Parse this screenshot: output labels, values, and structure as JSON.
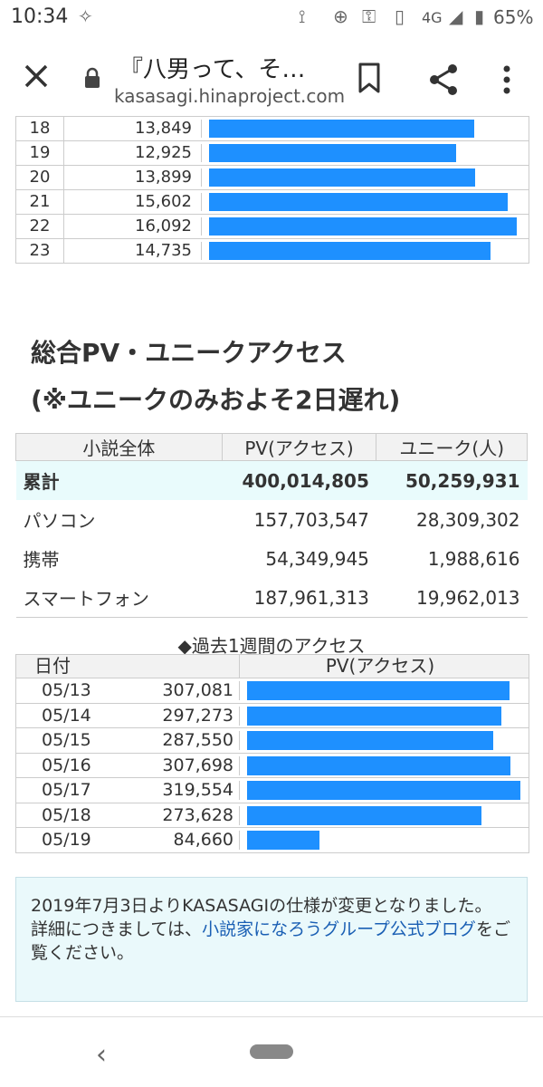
{
  "status": {
    "time": "10:34",
    "network": "4G",
    "battery": "65%"
  },
  "toolbar": {
    "title": "『八男って、そ…",
    "url": "kasasagi.hinaproject.com"
  },
  "hourly": [
    {
      "hour": "18",
      "pv": "13,849",
      "value": 13849
    },
    {
      "hour": "19",
      "pv": "12,925",
      "value": 12925
    },
    {
      "hour": "20",
      "pv": "13,899",
      "value": 13899
    },
    {
      "hour": "21",
      "pv": "15,602",
      "value": 15602
    },
    {
      "hour": "22",
      "pv": "16,092",
      "value": 16092
    },
    {
      "hour": "23",
      "pv": "14,735",
      "value": 14735
    }
  ],
  "section": {
    "heading1": "総合PV・ユニークアクセス",
    "heading2": "(※ユニークのみおよそ2日遅れ)"
  },
  "totals": {
    "headers": [
      "小説全体",
      "PV(アクセス)",
      "ユニーク(人)"
    ],
    "rows": [
      {
        "label": "累計",
        "pv": "400,014,805",
        "unique": "50,259,931"
      },
      {
        "label": "パソコン",
        "pv": "157,703,547",
        "unique": "28,309,302"
      },
      {
        "label": "携帯",
        "pv": "54,349,945",
        "unique": "1,988,616"
      },
      {
        "label": "スマートフォン",
        "pv": "187,961,313",
        "unique": "19,962,013"
      }
    ]
  },
  "weekly": {
    "caption": "◆過去1週間のアクセス",
    "headers": [
      "日付",
      "PV(アクセス)"
    ],
    "rows": [
      {
        "date": "05/13",
        "pv": "307,081",
        "value": 307081
      },
      {
        "date": "05/14",
        "pv": "297,273",
        "value": 297273
      },
      {
        "date": "05/15",
        "pv": "287,550",
        "value": 287550
      },
      {
        "date": "05/16",
        "pv": "307,698",
        "value": 307698
      },
      {
        "date": "05/17",
        "pv": "319,554",
        "value": 319554
      },
      {
        "date": "05/18",
        "pv": "273,628",
        "value": 273628
      },
      {
        "date": "05/19",
        "pv": "84,660",
        "value": 84660
      }
    ]
  },
  "notice": {
    "text1": "2019年7月3日よりKASASAGIの仕様が変更となりました。",
    "text2": "詳細につきましては、",
    "link": "小説家になろうグループ公式ブログ",
    "text3": "をご覧ください。"
  },
  "colors": {
    "bar": "#1e90ff",
    "accent_row": "#e9fbfc",
    "link": "#1a5fb4"
  },
  "chart_data": [
    {
      "type": "bar",
      "categories": [
        "18",
        "19",
        "20",
        "21",
        "22",
        "23"
      ],
      "values": [
        13849,
        12925,
        13899,
        15602,
        16092,
        14735
      ]
    },
    {
      "type": "bar",
      "title": "◆過去1週間のアクセス",
      "categories": [
        "05/13",
        "05/14",
        "05/15",
        "05/16",
        "05/17",
        "05/18",
        "05/19"
      ],
      "values": [
        307081,
        297273,
        287550,
        307698,
        319554,
        273628,
        84660
      ]
    }
  ]
}
